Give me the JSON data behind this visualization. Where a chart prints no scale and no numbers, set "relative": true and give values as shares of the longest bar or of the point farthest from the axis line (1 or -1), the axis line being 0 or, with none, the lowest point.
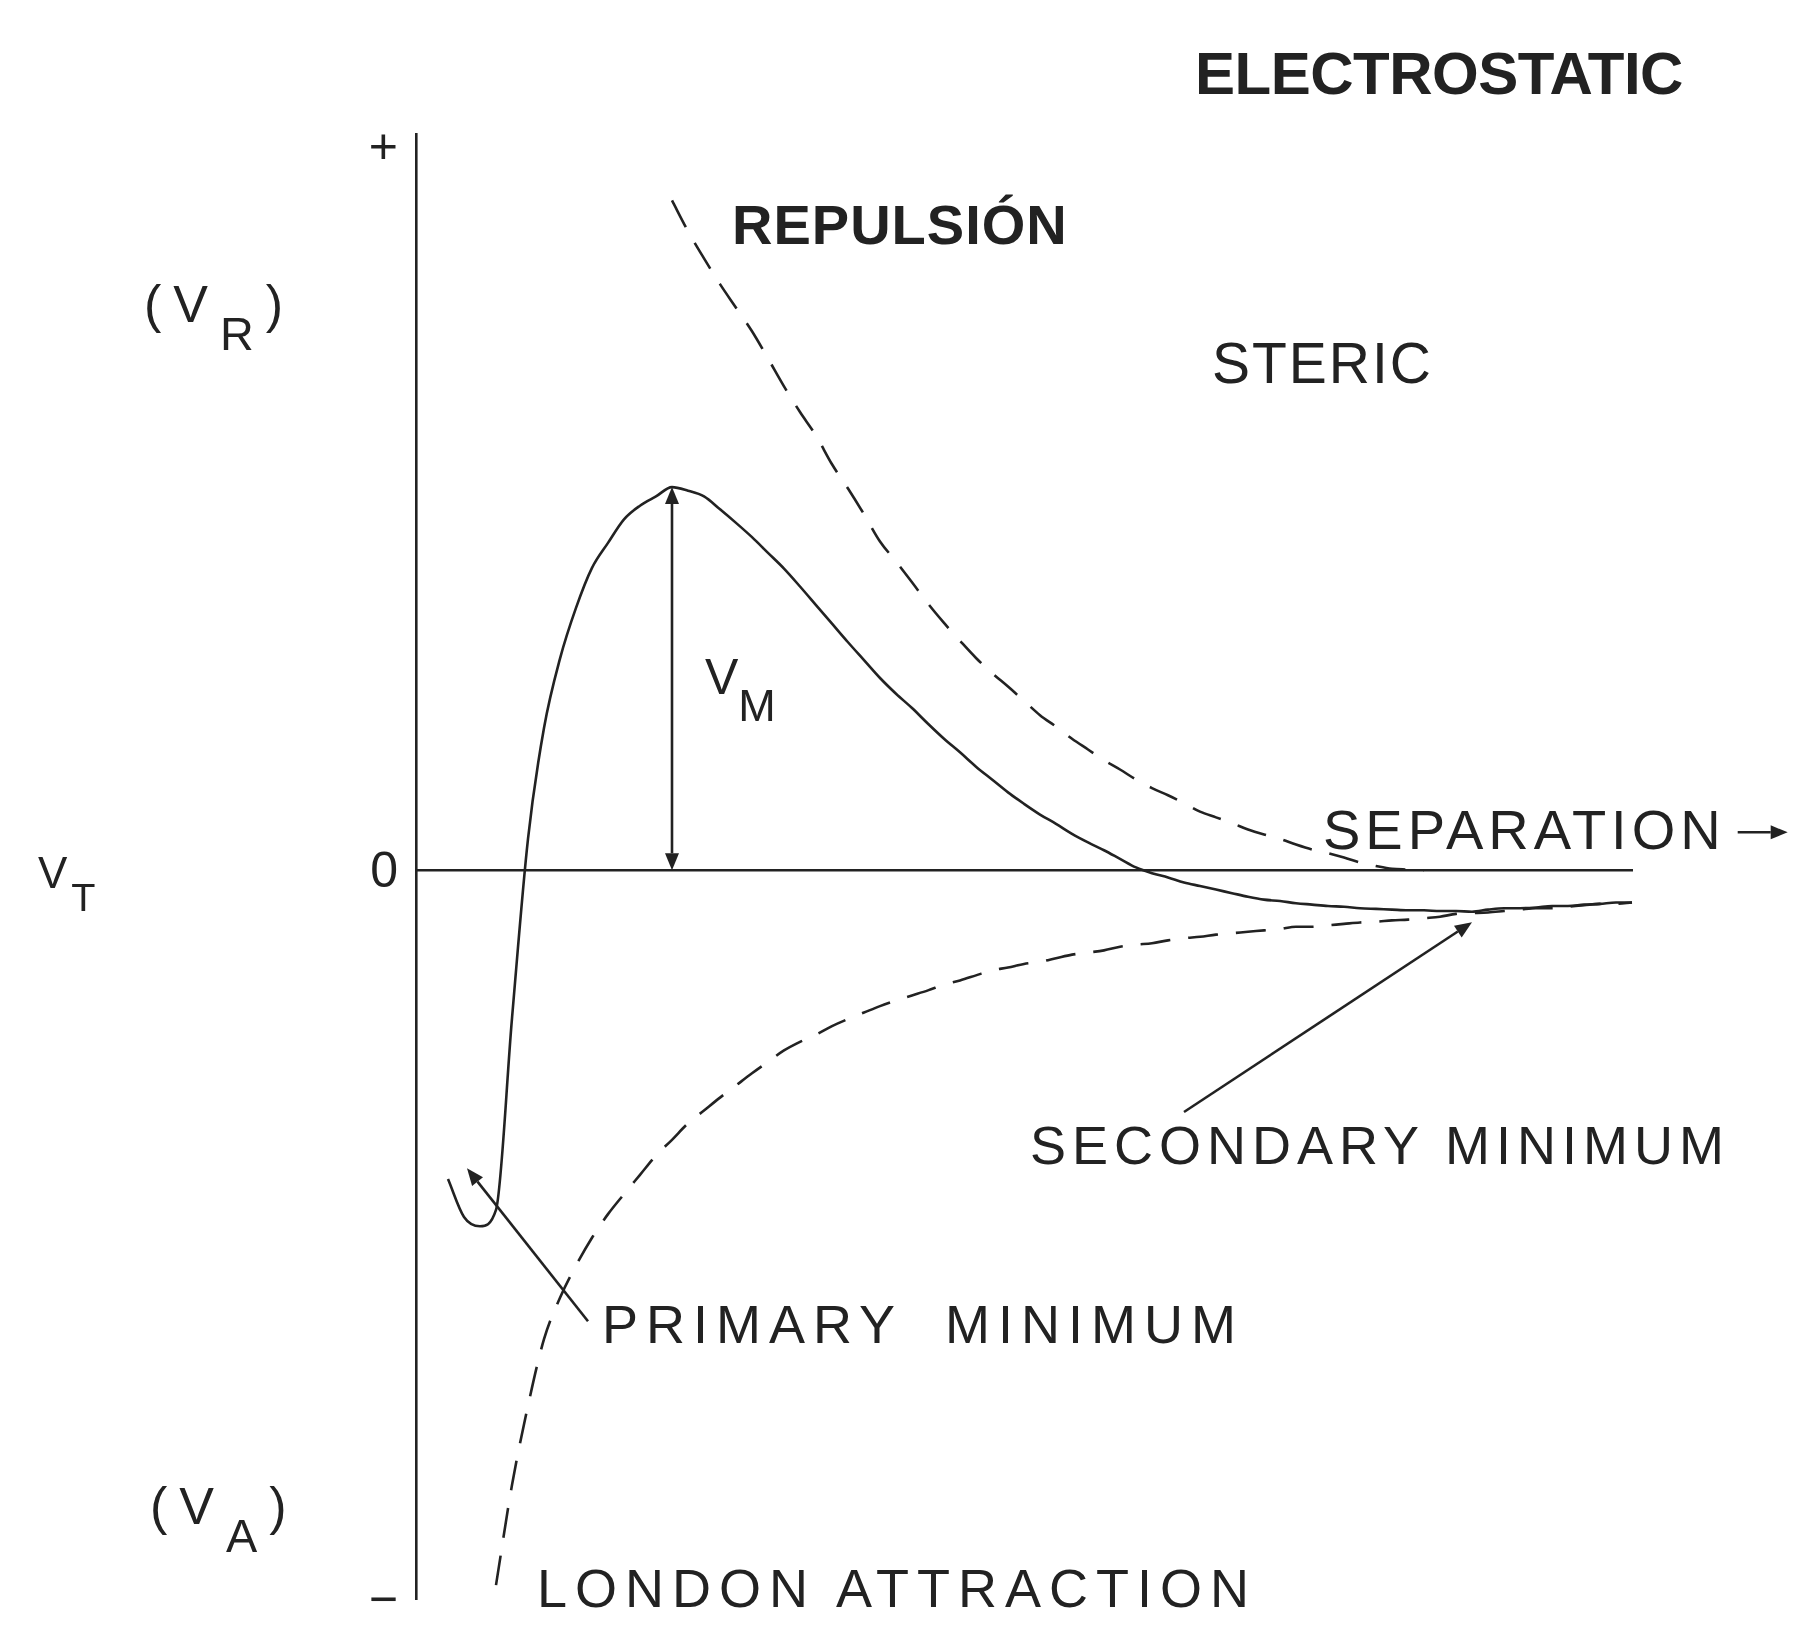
{
  "chart_data": {
    "type": "line",
    "relative": true,
    "xlabel": "SEPARATION",
    "categories": [
      null,
      null,
      null,
      null,
      null,
      null,
      null,
      null,
      null,
      null,
      null,
      null,
      null,
      null,
      null,
      null,
      null,
      null,
      null,
      null,
      null,
      null,
      null,
      null,
      null,
      null,
      null,
      null,
      null,
      null,
      null,
      null,
      null,
      null,
      null,
      null,
      null,
      null,
      null,
      null,
      null,
      null,
      null,
      null,
      null,
      null,
      null,
      null,
      null,
      null,
      null,
      null,
      null,
      null,
      null,
      null,
      null,
      null,
      null,
      null,
      null,
      null,
      null,
      null,
      null,
      null,
      null,
      null,
      null,
      null,
      null,
      null,
      null,
      null,
      null,
      null,
      null
    ],
    "series": [
      {
        "color": "#222222",
        "line_style": "solid",
        "values": [
          null,
          null,
          -0.432,
          -0.485,
          -0.498,
          -0.475,
          -0.207,
          0.044,
          0.199,
          0.296,
          0.367,
          0.423,
          0.458,
          0.491,
          0.51,
          0.523,
          0.536,
          0.531,
          0.523,
          0.505,
          0.486,
          0.466,
          0.444,
          0.422,
          0.397,
          0.371,
          0.345,
          0.319,
          0.294,
          0.269,
          0.247,
          0.227,
          0.205,
          0.184,
          0.165,
          0.145,
          0.127,
          0.109,
          0.093,
          0.078,
          0.065,
          0.051,
          0.039,
          0.028,
          0.016,
          0.004,
          -0.004,
          -0.01,
          -0.017,
          -0.022,
          -0.027,
          -0.032,
          -0.037,
          -0.041,
          -0.043,
          -0.046,
          -0.048,
          -0.05,
          -0.051,
          -0.053,
          -0.054,
          -0.055,
          -0.056,
          -0.056,
          -0.057,
          -0.057,
          -0.058,
          -0.055,
          -0.053,
          -0.053,
          -0.052,
          -0.05,
          -0.05,
          -0.048,
          -0.047,
          -0.045,
          -0.045
        ]
      },
      {
        "name": "REPULSIÓN",
        "color": "#222222",
        "line_style": "dashed",
        "values": [
          null,
          null,
          null,
          null,
          null,
          null,
          null,
          null,
          null,
          null,
          null,
          null,
          null,
          null,
          null,
          null,
          0.937,
          0.894,
          0.856,
          0.82,
          0.787,
          0.754,
          0.716,
          0.677,
          0.641,
          0.608,
          0.568,
          0.534,
          0.498,
          0.46,
          0.432,
          0.403,
          0.373,
          0.346,
          0.321,
          0.297,
          0.276,
          0.257,
          0.237,
          0.217,
          0.201,
          0.184,
          0.169,
          0.154,
          0.141,
          0.127,
          0.115,
          0.105,
          0.094,
          0.082,
          0.074,
          0.066,
          0.057,
          0.05,
          0.044,
          0.036,
          0.029,
          0.024,
          0.018,
          0.011,
          0.006,
          0.002,
          0.001,
          0,
          null,
          null,
          null,
          null,
          null,
          null,
          null,
          null,
          null,
          null,
          null,
          null,
          null
        ]
      },
      {
        "name": "LONDON ATTRACTION",
        "color": "#222222",
        "line_style": "dashed",
        "values": [
          null,
          null,
          null,
          null,
          null,
          -1,
          -0.86,
          -0.749,
          -0.656,
          -0.598,
          -0.553,
          -0.514,
          -0.481,
          -0.453,
          -0.426,
          -0.399,
          -0.377,
          -0.354,
          -0.336,
          -0.318,
          -0.301,
          -0.284,
          -0.268,
          -0.252,
          -0.24,
          -0.23,
          -0.218,
          -0.208,
          -0.199,
          -0.19,
          -0.182,
          -0.175,
          -0.168,
          -0.16,
          -0.154,
          -0.147,
          -0.14,
          -0.136,
          -0.131,
          -0.128,
          -0.123,
          -0.118,
          -0.115,
          -0.112,
          -0.107,
          -0.104,
          -0.102,
          -0.098,
          -0.095,
          -0.093,
          -0.09,
          -0.088,
          -0.086,
          -0.084,
          -0.082,
          -0.079,
          -0.079,
          -0.077,
          -0.075,
          -0.073,
          -0.072,
          -0.07,
          -0.069,
          -0.067,
          -0.065,
          -0.061,
          -0.06,
          -0.059,
          -0.057,
          -0.055,
          -0.053,
          -0.053,
          -0.051,
          -0.049,
          -0.047,
          -0.047,
          -0.045
        ]
      }
    ],
    "annotations": [
      "ELECTROSTATIC",
      "STERIC",
      "V$_{M}$",
      "SECONDARY MINIMUM",
      "PRIMARY MINIMUM",
      "(V$_{R}$)",
      "(V$_{A}$)",
      "V$_{T}$",
      "+",
      "0",
      "−"
    ]
  }
}
